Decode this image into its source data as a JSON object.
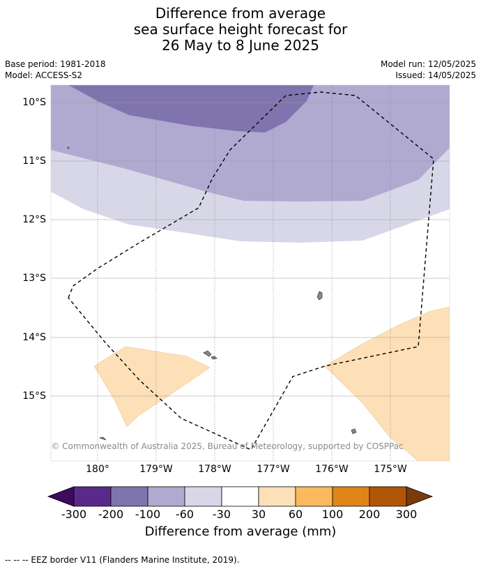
{
  "title": {
    "line1": "Difference from average",
    "line2": "sea surface height forecast for",
    "line3": "26 May to 8 June 2025"
  },
  "meta": {
    "base_period": "Base period: 1981-2018",
    "model": "Model: ACCESS-S2",
    "model_run": "Model run: 12/05/2025",
    "issued": "Issued: 14/05/2025"
  },
  "map": {
    "lat_labels": [
      "10°S",
      "11°S",
      "12°S",
      "13°S",
      "14°S",
      "15°S"
    ],
    "lon_labels": [
      "180°",
      "179°W",
      "178°W",
      "177°W",
      "176°W",
      "175°W"
    ],
    "copyright": "© Commonwealth of Australia 2025, Bureau of Meteorology, supported by COSPPac",
    "colors": {
      "neg_30_60": "#d7d7e8",
      "neg_60_100": "#b0a9d0",
      "neg_100_200": "#8074ae",
      "pos_30_60": "#fde0b7"
    }
  },
  "colorbar": {
    "ticks": [
      "-300",
      "-200",
      "-100",
      "-60",
      "-30",
      "30",
      "60",
      "100",
      "200",
      "300"
    ],
    "label": "Difference from average (mm)",
    "colors": [
      "#3d0a5c",
      "#5a2a8a",
      "#8074ae",
      "#b0a9d0",
      "#d7d7e8",
      "#ffffff",
      "#fde0b7",
      "#fbb95e",
      "#e18418",
      "#b05707",
      "#7a3b0c"
    ]
  },
  "legend": {
    "eez": "--  --  -- EEZ border V11 (Flanders Marine Institute, 2019)."
  }
}
